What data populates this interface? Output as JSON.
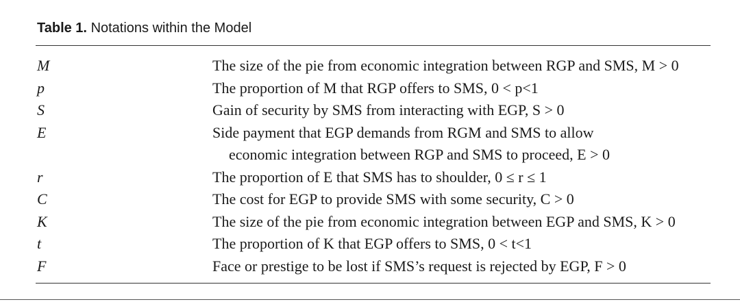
{
  "caption": {
    "label": "Table 1.",
    "title": "Notations within the Model"
  },
  "rows": [
    {
      "symbol": "M",
      "lines": [
        "The size of the pie from economic integration between RGP and SMS, M > 0"
      ]
    },
    {
      "symbol": "p",
      "lines": [
        "The proportion of M that RGP offers to SMS, 0 < p<1"
      ]
    },
    {
      "symbol": "S",
      "lines": [
        "Gain of security by SMS from interacting with EGP, S > 0"
      ]
    },
    {
      "symbol": "E",
      "lines": [
        "Side payment that EGP demands from RGM and SMS to allow",
        "economic integration between RGP and SMS to proceed, E > 0"
      ]
    },
    {
      "symbol": "r",
      "lines": [
        "The proportion of E that SMS has to shoulder, 0 ≤ r ≤ 1"
      ]
    },
    {
      "symbol": "C",
      "lines": [
        "The cost for EGP to provide SMS with some security, C > 0"
      ]
    },
    {
      "symbol": "K",
      "lines": [
        "The size of the pie from economic integration between EGP and SMS, K > 0"
      ]
    },
    {
      "symbol": "t",
      "lines": [
        "The proportion of K that EGP offers to SMS, 0 < t<1"
      ]
    },
    {
      "symbol": "F",
      "lines": [
        "Face or prestige to be lost if SMS’s request is rejected by EGP, F > 0"
      ]
    }
  ]
}
